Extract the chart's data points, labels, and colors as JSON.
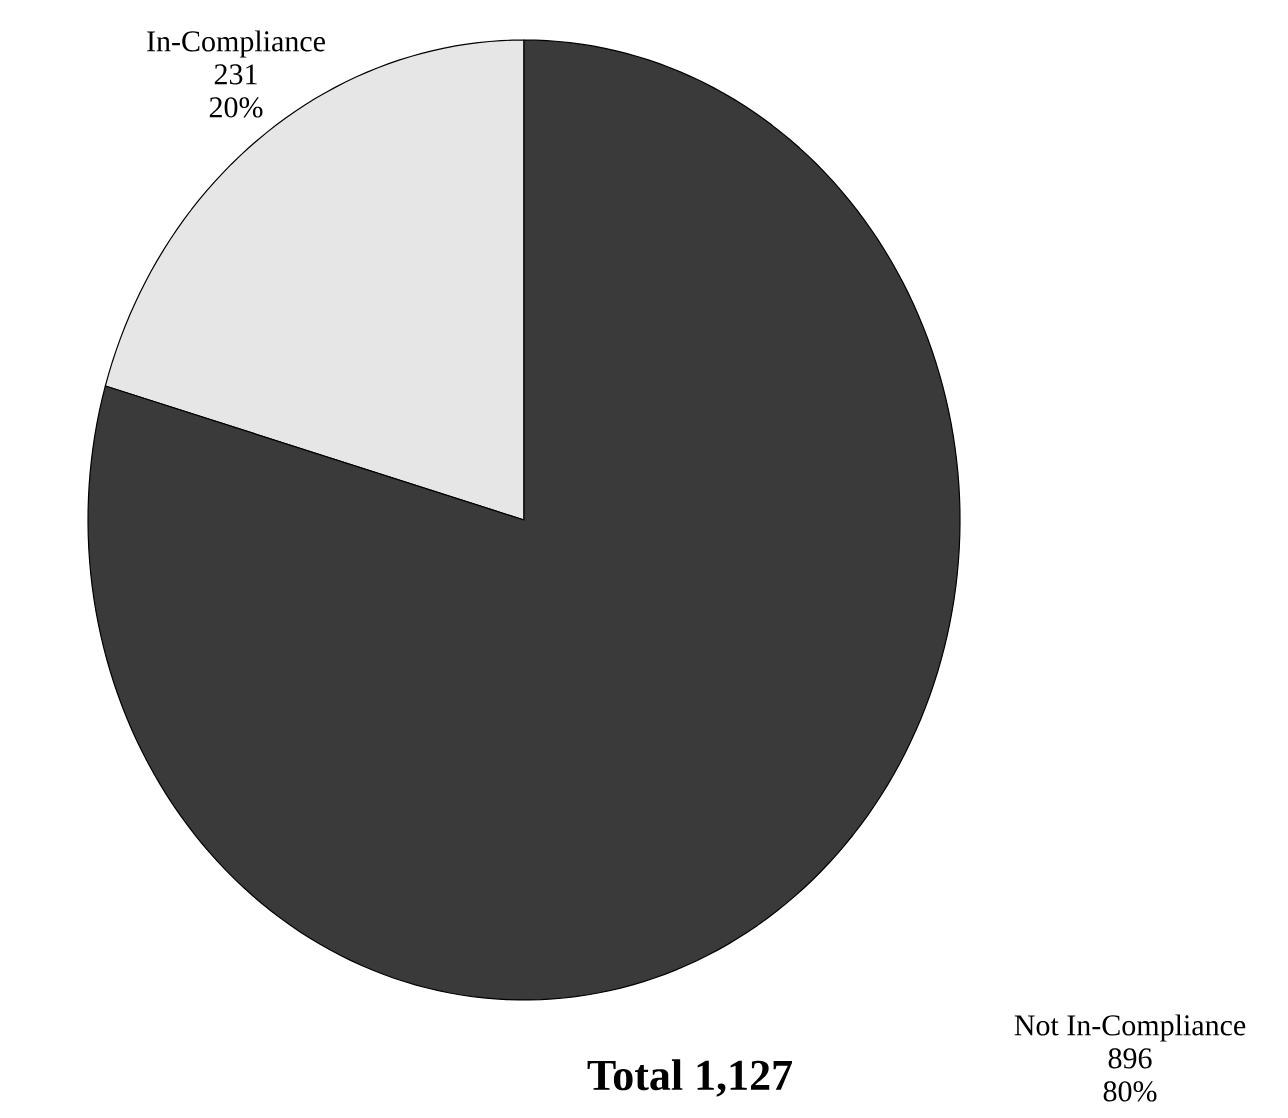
{
  "chart_data": {
    "type": "pie",
    "title": "Total 1,127",
    "categories": [
      "In-Compliance",
      "Not In-Compliance"
    ],
    "values": [
      231,
      896
    ],
    "data_labels": true,
    "annotations": [
      "20%",
      "80%"
    ],
    "colors": [
      "#e6e6e6",
      "#3a3a3a"
    ]
  }
}
